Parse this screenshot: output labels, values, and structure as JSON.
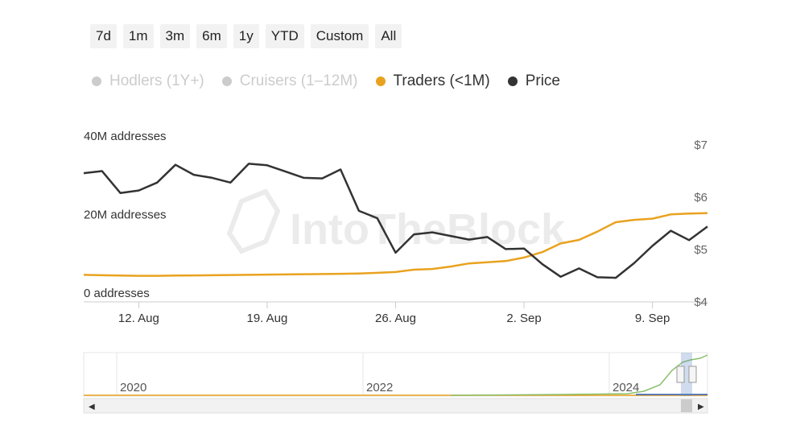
{
  "range_buttons": [
    "7d",
    "1m",
    "3m",
    "6m",
    "1y",
    "YTD",
    "Custom",
    "All"
  ],
  "legend": [
    {
      "label": "Hodlers (1Y+)",
      "color": "#cccccc",
      "active": false
    },
    {
      "label": "Cruisers (1–12M)",
      "color": "#cccccc",
      "active": false
    },
    {
      "label": "Traders (<1M)",
      "color": "#e9a21f",
      "active": true
    },
    {
      "label": "Price",
      "color": "#333333",
      "active": true
    }
  ],
  "watermark": "IntoTheBlock",
  "navigator": {
    "years": [
      "2020",
      "2022",
      "2024"
    ]
  },
  "chart_data": {
    "type": "line",
    "x_labels": [
      "12. Aug",
      "19. Aug",
      "26. Aug",
      "2. Sep",
      "9. Sep"
    ],
    "y_left": {
      "ticks": [
        "0 addresses",
        "20M addresses",
        "40M addresses"
      ],
      "range": [
        0,
        40000000
      ]
    },
    "y_right": {
      "ticks": [
        "$4",
        "$5",
        "$6",
        "$7"
      ],
      "range": [
        4,
        7
      ]
    },
    "x_range": [
      0,
      34
    ],
    "series": [
      {
        "name": "Traders (<1M)",
        "axis": "left",
        "color": "#e9a21f",
        "values": [
          6900000,
          6800000,
          6700000,
          6650000,
          6650000,
          6700000,
          6750000,
          6800000,
          6850000,
          6900000,
          6950000,
          7000000,
          7050000,
          7100000,
          7150000,
          7250000,
          7400000,
          7600000,
          8200000,
          8400000,
          9000000,
          9800000,
          10100000,
          10400000,
          11300000,
          12700000,
          14900000,
          15800000,
          17900000,
          20300000,
          20900000,
          21200000,
          22300000,
          22500000,
          22600000
        ],
        "x": [
          0,
          1,
          2,
          3,
          4,
          5,
          6,
          7,
          8,
          9,
          10,
          11,
          12,
          13,
          14,
          15,
          16,
          17,
          18,
          19,
          20,
          21,
          22,
          23,
          24,
          25,
          26,
          27,
          28,
          29,
          30,
          31,
          32,
          33,
          34
        ]
      },
      {
        "name": "Price",
        "axis": "right",
        "color": "#333333",
        "x": [
          0,
          1,
          2,
          3,
          4,
          5,
          6,
          7,
          8,
          9,
          10,
          11,
          12,
          13,
          14,
          15,
          16,
          17,
          18,
          19,
          20,
          21,
          22,
          23,
          24,
          25,
          26,
          27,
          28,
          29,
          30,
          31,
          32,
          33,
          34
        ],
        "values": [
          6.46,
          6.5,
          6.08,
          6.13,
          6.28,
          6.62,
          6.43,
          6.37,
          6.28,
          6.64,
          6.61,
          6.49,
          6.37,
          6.36,
          6.53,
          5.74,
          5.6,
          4.94,
          5.29,
          5.33,
          5.26,
          5.19,
          5.24,
          5.01,
          5.02,
          4.72,
          4.48,
          4.64,
          4.47,
          4.46,
          4.74,
          5.07,
          5.36,
          5.18,
          5.44
        ]
      }
    ]
  }
}
